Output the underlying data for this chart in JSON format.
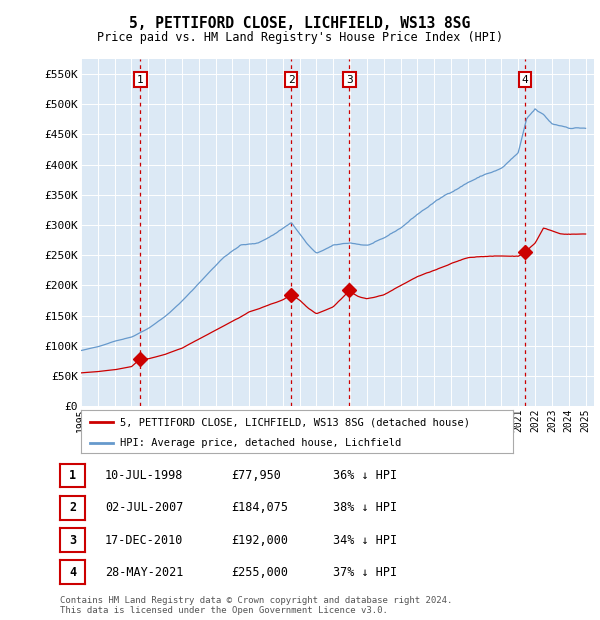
{
  "title": "5, PETTIFORD CLOSE, LICHFIELD, WS13 8SG",
  "subtitle": "Price paid vs. HM Land Registry's House Price Index (HPI)",
  "background_color": "#ffffff",
  "plot_bg_color": "#dce9f5",
  "grid_color": "#ffffff",
  "hpi_color": "#6699cc",
  "price_color": "#cc0000",
  "vline_color": "#cc0000",
  "ylim": [
    0,
    575000
  ],
  "yticks": [
    0,
    50000,
    100000,
    150000,
    200000,
    250000,
    300000,
    350000,
    400000,
    450000,
    500000,
    550000
  ],
  "ytick_labels": [
    "£0",
    "£50K",
    "£100K",
    "£150K",
    "£200K",
    "£250K",
    "£300K",
    "£350K",
    "£400K",
    "£450K",
    "£500K",
    "£550K"
  ],
  "sales": [
    {
      "num": "1",
      "date_x": 1998.53,
      "price": 77950
    },
    {
      "num": "2",
      "date_x": 2007.5,
      "price": 184075
    },
    {
      "num": "3",
      "date_x": 2010.96,
      "price": 192000
    },
    {
      "num": "4",
      "date_x": 2021.41,
      "price": 255000
    }
  ],
  "table_entries": [
    {
      "num": "1",
      "date": "10-JUL-1998",
      "price": "£77,950",
      "pct": "36% ↓ HPI"
    },
    {
      "num": "2",
      "date": "02-JUL-2007",
      "price": "£184,075",
      "pct": "38% ↓ HPI"
    },
    {
      "num": "3",
      "date": "17-DEC-2010",
      "price": "£192,000",
      "pct": "34% ↓ HPI"
    },
    {
      "num": "4",
      "date": "28-MAY-2021",
      "price": "£255,000",
      "pct": "37% ↓ HPI"
    }
  ],
  "legend_entries": [
    {
      "label": "5, PETTIFORD CLOSE, LICHFIELD, WS13 8SG (detached house)",
      "color": "#cc0000"
    },
    {
      "label": "HPI: Average price, detached house, Lichfield",
      "color": "#6699cc"
    }
  ],
  "footnote": "Contains HM Land Registry data © Crown copyright and database right 2024.\nThis data is licensed under the Open Government Licence v3.0.",
  "xmin": 1995.0,
  "xmax": 2025.5,
  "xtick_years": [
    1995,
    1996,
    1997,
    1998,
    1999,
    2000,
    2001,
    2002,
    2003,
    2004,
    2005,
    2006,
    2007,
    2008,
    2009,
    2010,
    2011,
    2012,
    2013,
    2014,
    2015,
    2016,
    2017,
    2018,
    2019,
    2020,
    2021,
    2022,
    2023,
    2024,
    2025
  ],
  "hpi_keypoints": [
    [
      1995.0,
      92000
    ],
    [
      1996.0,
      98000
    ],
    [
      1997.0,
      108000
    ],
    [
      1998.0,
      115000
    ],
    [
      1999.0,
      130000
    ],
    [
      2000.0,
      150000
    ],
    [
      2001.0,
      175000
    ],
    [
      2002.5,
      220000
    ],
    [
      2003.5,
      250000
    ],
    [
      2004.5,
      270000
    ],
    [
      2005.5,
      272000
    ],
    [
      2006.5,
      288000
    ],
    [
      2007.5,
      308000
    ],
    [
      2008.5,
      270000
    ],
    [
      2009.0,
      255000
    ],
    [
      2009.5,
      262000
    ],
    [
      2010.0,
      268000
    ],
    [
      2011.0,
      272000
    ],
    [
      2012.0,
      268000
    ],
    [
      2013.0,
      278000
    ],
    [
      2014.0,
      295000
    ],
    [
      2015.0,
      318000
    ],
    [
      2016.0,
      338000
    ],
    [
      2017.0,
      355000
    ],
    [
      2018.0,
      372000
    ],
    [
      2019.0,
      385000
    ],
    [
      2020.0,
      395000
    ],
    [
      2021.0,
      420000
    ],
    [
      2021.5,
      475000
    ],
    [
      2022.0,
      490000
    ],
    [
      2022.5,
      480000
    ],
    [
      2023.0,
      465000
    ],
    [
      2024.0,
      460000
    ],
    [
      2025.0,
      460000
    ]
  ],
  "price_keypoints": [
    [
      1995.0,
      55000
    ],
    [
      1996.0,
      57000
    ],
    [
      1997.0,
      60000
    ],
    [
      1998.0,
      65000
    ],
    [
      1998.53,
      77950
    ],
    [
      1999.0,
      78000
    ],
    [
      2000.0,
      85000
    ],
    [
      2001.0,
      95000
    ],
    [
      2002.0,
      110000
    ],
    [
      2003.0,
      125000
    ],
    [
      2004.0,
      140000
    ],
    [
      2005.0,
      155000
    ],
    [
      2006.0,
      165000
    ],
    [
      2007.0,
      175000
    ],
    [
      2007.5,
      184075
    ],
    [
      2008.0,
      175000
    ],
    [
      2008.5,
      162000
    ],
    [
      2009.0,
      153000
    ],
    [
      2010.0,
      165000
    ],
    [
      2010.96,
      192000
    ],
    [
      2011.0,
      190000
    ],
    [
      2011.5,
      182000
    ],
    [
      2012.0,
      178000
    ],
    [
      2013.0,
      185000
    ],
    [
      2014.0,
      200000
    ],
    [
      2015.0,
      215000
    ],
    [
      2016.0,
      225000
    ],
    [
      2017.0,
      235000
    ],
    [
      2018.0,
      245000
    ],
    [
      2019.0,
      248000
    ],
    [
      2020.0,
      248000
    ],
    [
      2021.0,
      248000
    ],
    [
      2021.41,
      255000
    ],
    [
      2022.0,
      270000
    ],
    [
      2022.5,
      295000
    ],
    [
      2023.0,
      290000
    ],
    [
      2023.5,
      285000
    ],
    [
      2024.0,
      285000
    ],
    [
      2025.0,
      285000
    ]
  ]
}
